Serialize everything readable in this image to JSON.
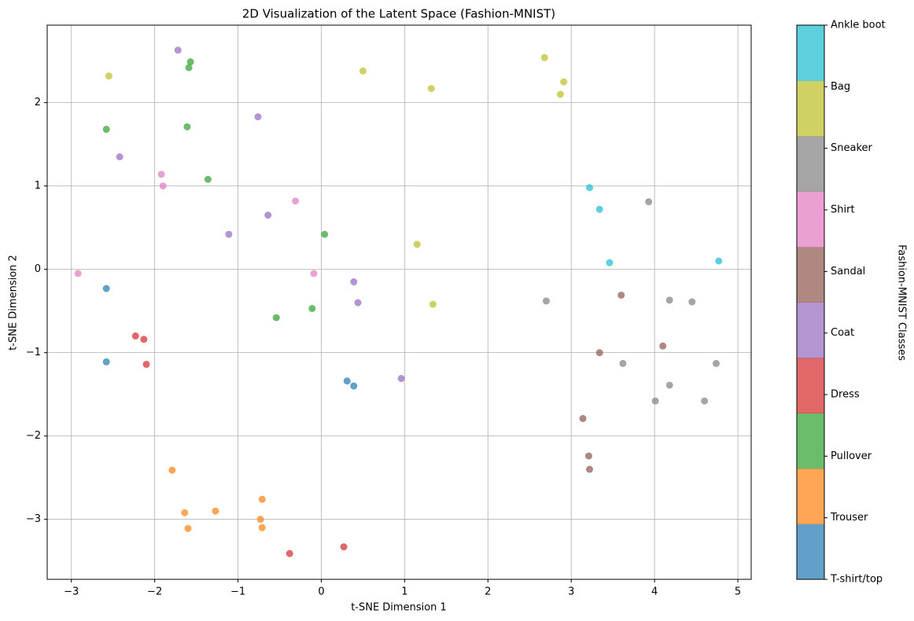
{
  "chart_data": {
    "type": "scatter",
    "title": "2D Visualization of the Latent Space (Fashion-MNIST)",
    "x_label": "t-SNE Dimension 1",
    "y_label": "t-SNE Dimension 2",
    "colorbar_label": "Fashion-MNIST Classes",
    "xlim": [
      -3.29,
      5.16
    ],
    "ylim": [
      -3.72,
      2.93
    ],
    "xticks": [
      {
        "value": -3,
        "label": "−3"
      },
      {
        "value": -2,
        "label": "−2"
      },
      {
        "value": -1,
        "label": "−1"
      },
      0,
      1,
      2,
      3,
      4,
      5
    ],
    "yticks": [
      {
        "value": -3,
        "label": "−3"
      },
      {
        "value": -2,
        "label": "−2"
      },
      {
        "value": -1,
        "label": "−1"
      },
      0,
      1,
      2
    ],
    "grid": true,
    "series": [
      {
        "name": "T-shirt/top",
        "color": "#1f77b4",
        "x": [
          -2.58,
          -2.58,
          0.31,
          0.39
        ],
        "y": [
          -0.23,
          -1.11,
          -1.34,
          -1.4
        ]
      },
      {
        "name": "Trouser",
        "color": "#ff7f0e",
        "x": [
          -1.79,
          -1.64,
          -1.6,
          -1.27,
          -0.71,
          -0.73,
          -0.71
        ],
        "y": [
          -2.41,
          -2.92,
          -3.11,
          -2.9,
          -2.76,
          -3.0,
          -3.1
        ]
      },
      {
        "name": "Pullover",
        "color": "#2ca02c",
        "x": [
          -1.57,
          -1.59,
          -2.58,
          -1.61,
          -1.36,
          0.04,
          -0.54,
          -0.11
        ],
        "y": [
          2.49,
          2.42,
          1.68,
          1.71,
          1.08,
          0.42,
          -0.58,
          -0.47
        ]
      },
      {
        "name": "Dress",
        "color": "#d62728",
        "x": [
          -2.23,
          -2.13,
          -2.1,
          -0.38,
          0.27
        ],
        "y": [
          -0.8,
          -0.84,
          -1.14,
          -3.41,
          -3.33
        ]
      },
      {
        "name": "Coat",
        "color": "#9467bd",
        "x": [
          -1.72,
          -0.76,
          -2.42,
          -0.64,
          -1.11,
          0.39,
          0.44,
          0.96
        ],
        "y": [
          2.63,
          1.83,
          1.35,
          0.65,
          0.42,
          -0.15,
          -0.4,
          -1.31
        ]
      },
      {
        "name": "Sandal",
        "color": "#8c564b",
        "x": [
          3.6,
          4.1,
          3.34,
          3.14,
          3.21,
          3.22
        ],
        "y": [
          -0.31,
          -0.92,
          -1.0,
          -1.79,
          -2.24,
          -2.4
        ]
      },
      {
        "name": "Shirt",
        "color": "#e377c2",
        "x": [
          -2.92,
          -1.92,
          -1.9,
          -0.31,
          -0.09
        ],
        "y": [
          -0.05,
          1.14,
          1.0,
          0.82,
          -0.05
        ]
      },
      {
        "name": "Sneaker",
        "color": "#7f7f7f",
        "x": [
          3.93,
          2.7,
          4.18,
          4.45,
          3.62,
          4.74,
          4.18,
          4.01,
          4.6
        ],
        "y": [
          0.81,
          -0.38,
          -0.37,
          -0.39,
          -1.13,
          -1.13,
          -1.39,
          -1.58,
          -1.58
        ]
      },
      {
        "name": "Bag",
        "color": "#bcbd22",
        "x": [
          -2.55,
          0.5,
          1.32,
          2.68,
          2.91,
          2.87,
          1.15,
          1.34
        ],
        "y": [
          2.32,
          2.38,
          2.17,
          2.54,
          2.25,
          2.1,
          0.3,
          -0.42
        ]
      },
      {
        "name": "Ankle boot",
        "color": "#17becf",
        "x": [
          3.22,
          3.34,
          3.46,
          4.77
        ],
        "y": [
          0.98,
          0.72,
          0.08,
          0.1
        ]
      }
    ]
  }
}
